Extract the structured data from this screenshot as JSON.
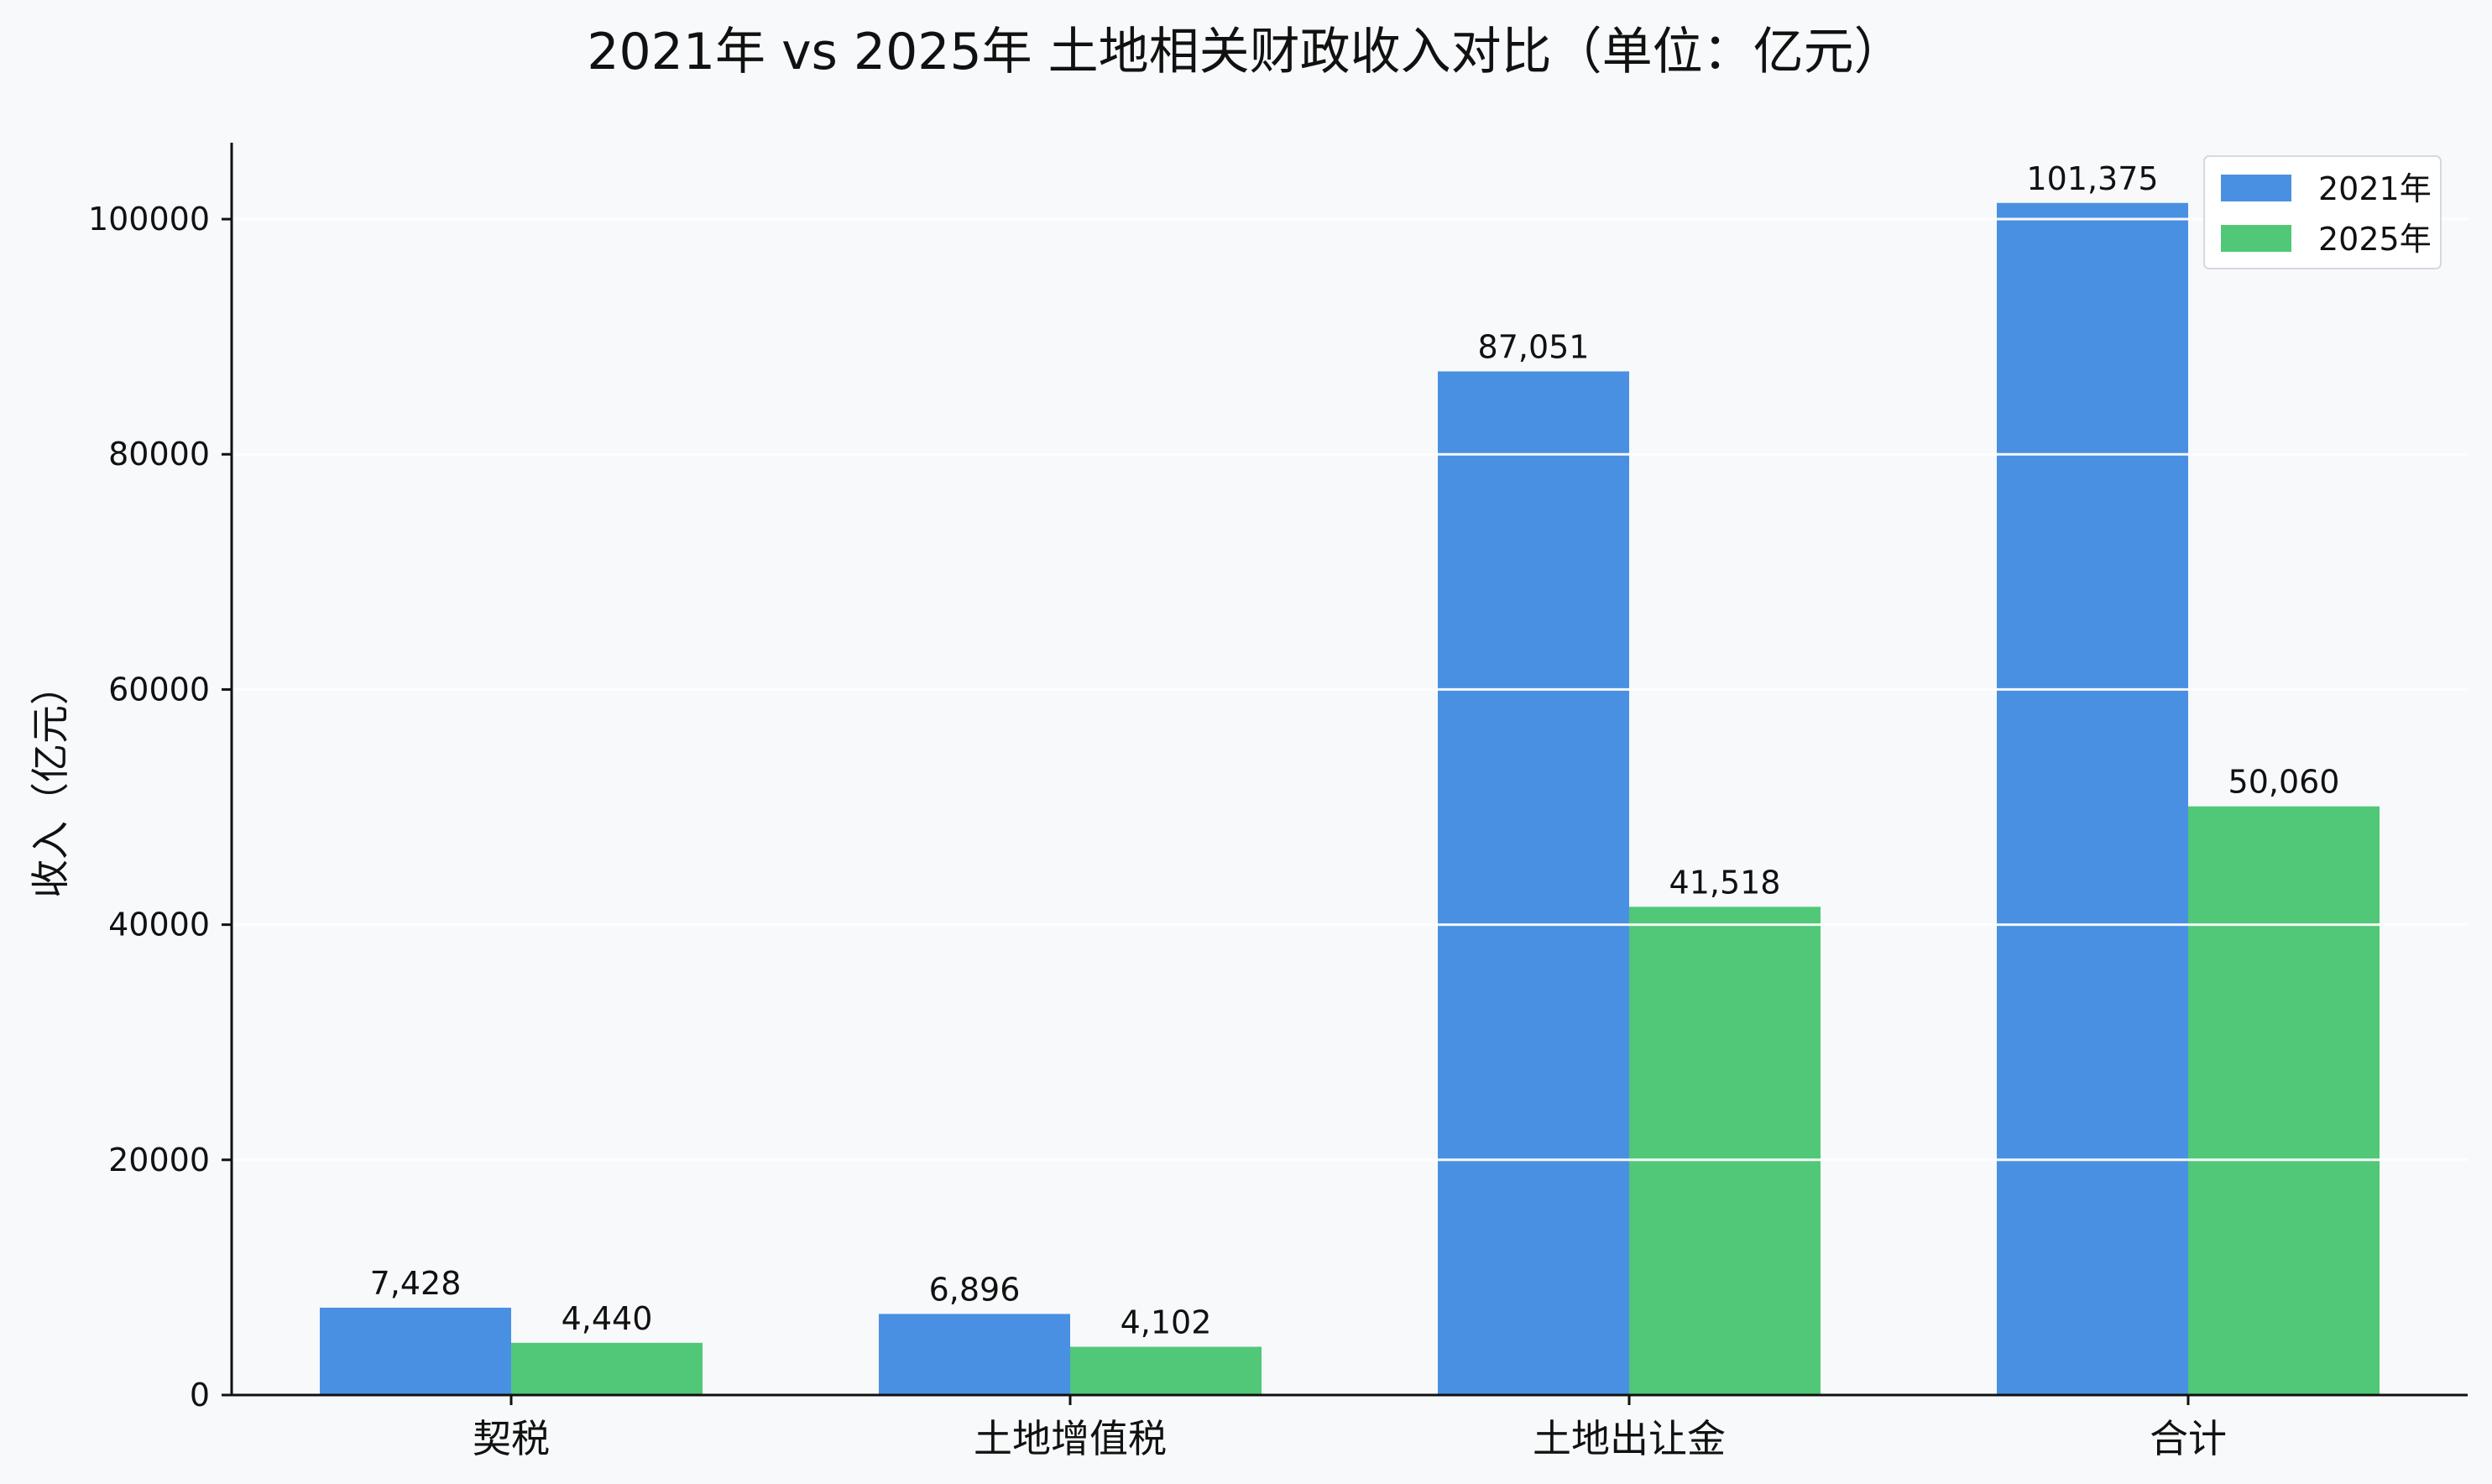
{
  "chart_data": {
    "type": "bar",
    "title": "2021年 vs 2025年 土地相关财政收入对比（单位：亿元）",
    "xlabel": "",
    "ylabel": "收入（亿元）",
    "categories": [
      "契税",
      "土地增值税",
      "土地出让金",
      "合计"
    ],
    "series": [
      {
        "name": "2021年",
        "color": "#4a90e2",
        "values": [
          7428,
          6896,
          87051,
          101375
        ],
        "labels": [
          "7,428",
          "6,896",
          "87,051",
          "101,375"
        ]
      },
      {
        "name": "2025年",
        "color": "#50c878",
        "values": [
          4440,
          4102,
          41518,
          50060
        ],
        "labels": [
          "4,440",
          "4,102",
          "41,518",
          "50,060"
        ]
      }
    ],
    "ylim": [
      0,
      106500
    ],
    "yticks": [
      0,
      20000,
      40000,
      60000,
      80000,
      100000
    ],
    "ytick_labels": [
      "0",
      "20000",
      "40000",
      "60000",
      "80000",
      "100000"
    ],
    "grid": true,
    "legend_position": "top-right"
  }
}
